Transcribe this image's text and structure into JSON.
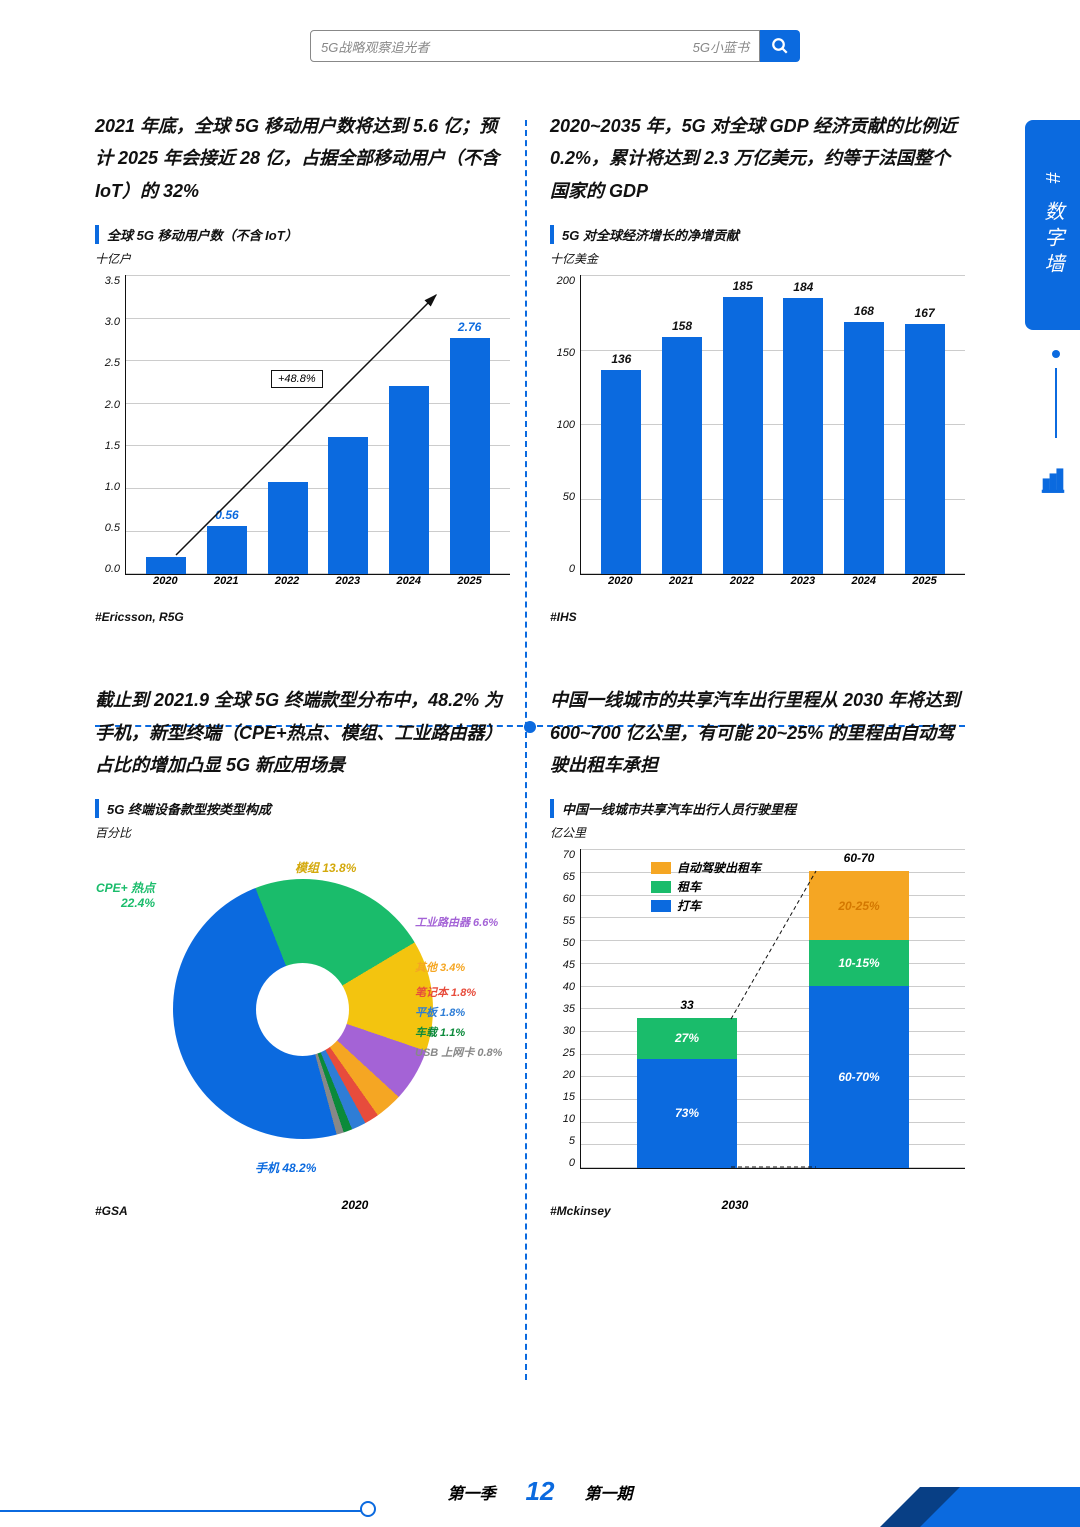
{
  "search": {
    "placeholder": "5G战略观察追光者",
    "hint": "5G小蓝书"
  },
  "side_tab": "# 数字墙",
  "side_icon": "chart-bar-icon",
  "accent_color": "#0b6adf",
  "panels": {
    "tl": {
      "headline": "2021 年底，全球 5G 移动用户数将达到 5.6 亿；预计 2025 年会接近 28 亿，占据全部移动用户（不含 IoT）的 32%",
      "chart_title": "全球 5G 移动用户数（不含 IoT）",
      "unit": "十亿户",
      "source": "#Ericsson, R5G",
      "chart": {
        "type": "bar",
        "categories": [
          "2020",
          "2021",
          "2022",
          "2023",
          "2024",
          "2025"
        ],
        "values": [
          0.2,
          0.56,
          1.08,
          1.6,
          2.2,
          2.76
        ],
        "value_labels": [
          "",
          "0.56",
          "",
          "",
          "",
          "2.76"
        ],
        "ylim": [
          0.0,
          3.5
        ],
        "ytick_step": 0.5,
        "bar_color": "#0b6adf",
        "label_color": "#0b6adf",
        "grid_color": "#cccccc",
        "annotation": "+48.8%"
      }
    },
    "tr": {
      "headline": "2020~2035 年，5G 对全球 GDP 经济贡献的比例近 0.2%，累计将达到 2.3 万亿美元，约等于法国整个国家的 GDP",
      "chart_title": "5G 对全球经济增长的净增贡献",
      "unit": "十亿美金",
      "source": "#IHS",
      "chart": {
        "type": "bar",
        "categories": [
          "2020",
          "2021",
          "2022",
          "2023",
          "2024",
          "2025"
        ],
        "values": [
          136,
          158,
          185,
          184,
          168,
          167
        ],
        "value_labels": [
          "136",
          "158",
          "185",
          "184",
          "168",
          "167"
        ],
        "ylim": [
          0.0,
          200
        ],
        "ytick_step": 50,
        "bar_color": "#0b6adf",
        "label_color": "#111111",
        "grid_color": "#cccccc"
      }
    },
    "bl": {
      "headline": "截止到 2021.9 全球 5G 终端款型分布中，48.2% 为手机，新型终端（CPE+热点、模组、工业路由器）占比的增加凸显 5G 新应用场景",
      "chart_title": "5G 终端设备款型按类型构成",
      "unit": "百分比",
      "source": "#GSA",
      "chart": {
        "type": "donut",
        "slices": [
          {
            "label": "手机 48.2%",
            "value": 48.2,
            "color": "#0b6adf",
            "label_color": "#0b6adf",
            "pos": "bottom"
          },
          {
            "label": "CPE+ 热点 22.4%",
            "value": 22.4,
            "color": "#1abc6b",
            "label_color": "#1abc6b",
            "pos": "topleft"
          },
          {
            "label": "模组 13.8%",
            "value": 13.8,
            "color": "#f3c40f",
            "label_color": "#d4a90c",
            "pos": "top"
          },
          {
            "label": "工业路由器 6.6%",
            "value": 6.6,
            "color": "#a463d6",
            "label_color": "#a463d6",
            "pos": "right1"
          },
          {
            "label": "其他 3.4%",
            "value": 3.4,
            "color": "#f5a623",
            "label_color": "#f5a623",
            "pos": "right2"
          },
          {
            "label": "笔记本 1.8%",
            "value": 1.8,
            "color": "#e74c3c",
            "label_color": "#e74c3c",
            "pos": "right3"
          },
          {
            "label": "平板 1.8%",
            "value": 1.8,
            "color": "#2e7dd6",
            "label_color": "#2e7dd6",
            "pos": "right4"
          },
          {
            "label": "车载 1.1%",
            "value": 1.1,
            "color": "#0b8a3a",
            "label_color": "#0b8a3a",
            "pos": "right5"
          },
          {
            "label": "USB 上网卡 0.8%",
            "value": 0.8,
            "color": "#888888",
            "label_color": "#888888",
            "pos": "right6"
          }
        ],
        "background_color": "#ffffff"
      }
    },
    "br": {
      "headline": "中国一线城市的共享汽车出行里程从 2030 年将达到 600~700 亿公里，有可能 20~25% 的里程由自动驾驶出租车承担",
      "chart_title": "中国一线城市共享汽车出行人员行驶里程",
      "unit": "亿公里",
      "source": "#Mckinsey",
      "chart": {
        "type": "stacked-bar",
        "ylim": [
          0,
          70
        ],
        "ytick_step": 5,
        "categories": [
          "2020",
          "2030"
        ],
        "legend": [
          {
            "label": "自动驾驶出租车",
            "color": "#f5a623"
          },
          {
            "label": "租车",
            "color": "#1abc6b"
          },
          {
            "label": "打车",
            "color": "#0b6adf"
          }
        ],
        "bars": [
          {
            "total": "33",
            "segments": [
              {
                "color": "#0b6adf",
                "value": 24,
                "label": "73%"
              },
              {
                "color": "#1abc6b",
                "value": 9,
                "label": "27%"
              }
            ]
          },
          {
            "total": "60-70",
            "segments": [
              {
                "color": "#0b6adf",
                "value": 40,
                "label": "60-70%"
              },
              {
                "color": "#1abc6b",
                "value": 10,
                "label": "10-15%"
              },
              {
                "color": "#f5a623",
                "value": 15,
                "label": "20-25%",
                "text_color": "#d47800"
              }
            ]
          }
        ]
      }
    }
  },
  "footer": {
    "left": "第一季",
    "page": "12",
    "right": "第一期"
  }
}
